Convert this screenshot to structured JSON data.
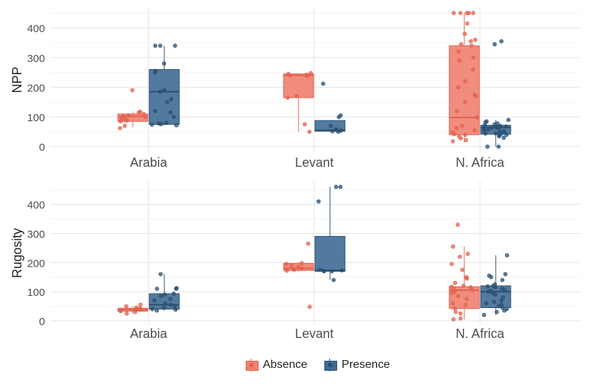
{
  "chart_data": [
    {
      "type": "box",
      "ylabel": "NPP",
      "categories": [
        "Arabia",
        "Levant",
        "N. Africa"
      ],
      "ylim": [
        -20,
        470
      ],
      "yticks": [
        0,
        100,
        200,
        300,
        400
      ],
      "series": [
        {
          "name": "Absence",
          "color": "#f08070",
          "stroke": "#e2634f",
          "boxes": [
            {
              "q1": 85,
              "median": 102,
              "q3": 110,
              "whisker_low": 65,
              "whisker_high": 118,
              "points": [
                62,
                70,
                85,
                88,
                92,
                95,
                100,
                102,
                105,
                110,
                115,
                118,
                190
              ]
            },
            {
              "q1": 165,
              "median": 240,
              "q3": 245,
              "whisker_low": 50,
              "whisker_high": 248,
              "points": [
                50,
                75,
                165,
                170,
                238,
                240,
                242,
                245,
                248
              ]
            },
            {
              "q1": 40,
              "median": 98,
              "q3": 340,
              "whisker_low": 15,
              "whisker_high": 450,
              "points": [
                18,
                22,
                28,
                35,
                40,
                42,
                48,
                55,
                62,
                70,
                98,
                120,
                150,
                170,
                175,
                200,
                220,
                260,
                290,
                300,
                320,
                340,
                345,
                355,
                360,
                380,
                415,
                450,
                450,
                450,
                450,
                450
              ]
            }
          ]
        },
        {
          "name": "Presence",
          "color": "#3f6b93",
          "stroke": "#2b5070",
          "boxes": [
            {
              "q1": 75,
              "median": 185,
              "q3": 260,
              "whisker_low": 72,
              "whisker_high": 340,
              "points": [
                72,
                74,
                76,
                78,
                80,
                100,
                115,
                120,
                150,
                160,
                185,
                190,
                250,
                255,
                280,
                340,
                340,
                340
              ]
            },
            {
              "q1": 52,
              "median": 55,
              "q3": 88,
              "whisker_low": 50,
              "whisker_high": 88,
              "points": [
                50,
                52,
                54,
                56,
                58,
                70,
                100,
                105,
                212
              ]
            },
            {
              "q1": 42,
              "median": 65,
              "q3": 72,
              "whisker_low": 0,
              "whisker_high": 90,
              "points": [
                0,
                0,
                30,
                35,
                38,
                40,
                42,
                44,
                45,
                48,
                50,
                52,
                55,
                58,
                60,
                62,
                63,
                65,
                66,
                68,
                70,
                72,
                75,
                78,
                82,
                85,
                90,
                345,
                355
              ]
            }
          ]
        }
      ]
    },
    {
      "type": "box",
      "ylabel": "Rugosity",
      "categories": [
        "Arabia",
        "Levant",
        "N. Africa"
      ],
      "ylim": [
        -15,
        480
      ],
      "yticks": [
        0,
        100,
        200,
        300,
        400
      ],
      "series": [
        {
          "name": "Absence",
          "color": "#f08070",
          "stroke": "#e2634f",
          "boxes": [
            {
              "q1": 33,
              "median": 38,
              "q3": 43,
              "whisker_low": 25,
              "whisker_high": 50,
              "points": [
                25,
                30,
                33,
                35,
                38,
                40,
                43,
                45,
                50,
                55
              ]
            },
            {
              "q1": 173,
              "median": 180,
              "q3": 197,
              "whisker_low": 170,
              "whisker_high": 200,
              "points": [
                48,
                172,
                175,
                178,
                180,
                185,
                190,
                195,
                198,
                265
              ]
            },
            {
              "q1": 42,
              "median": 105,
              "q3": 117,
              "whisker_low": 5,
              "whisker_high": 255,
              "points": [
                5,
                8,
                25,
                30,
                42,
                55,
                60,
                75,
                85,
                95,
                100,
                105,
                110,
                115,
                117,
                120,
                130,
                145,
                150,
                175,
                195,
                220,
                230,
                255,
                330
              ]
            }
          ]
        },
        {
          "name": "Presence",
          "color": "#3f6b93",
          "stroke": "#2b5070",
          "boxes": [
            {
              "q1": 40,
              "median": 55,
              "q3": 93,
              "whisker_low": 35,
              "whisker_high": 160,
              "points": [
                35,
                38,
                40,
                45,
                50,
                55,
                60,
                70,
                75,
                85,
                90,
                93,
                110,
                110,
                112,
                160
              ]
            },
            {
              "q1": 170,
              "median": 173,
              "q3": 290,
              "whisker_low": 140,
              "whisker_high": 460,
              "points": [
                140,
                170,
                170,
                172,
                173,
                175,
                410,
                460,
                460
              ]
            },
            {
              "q1": 45,
              "median": 100,
              "q3": 120,
              "whisker_low": 20,
              "whisker_high": 225,
              "points": [
                20,
                30,
                35,
                40,
                45,
                50,
                55,
                60,
                65,
                70,
                80,
                90,
                95,
                100,
                102,
                105,
                110,
                115,
                118,
                120,
                125,
                140,
                150,
                155,
                160,
                225
              ]
            }
          ]
        }
      ]
    }
  ],
  "legend": {
    "items": [
      {
        "name": "Absence",
        "color": "#f08070",
        "stroke": "#e2634f"
      },
      {
        "name": "Presence",
        "color": "#3f6b93",
        "stroke": "#2b5070"
      }
    ]
  }
}
